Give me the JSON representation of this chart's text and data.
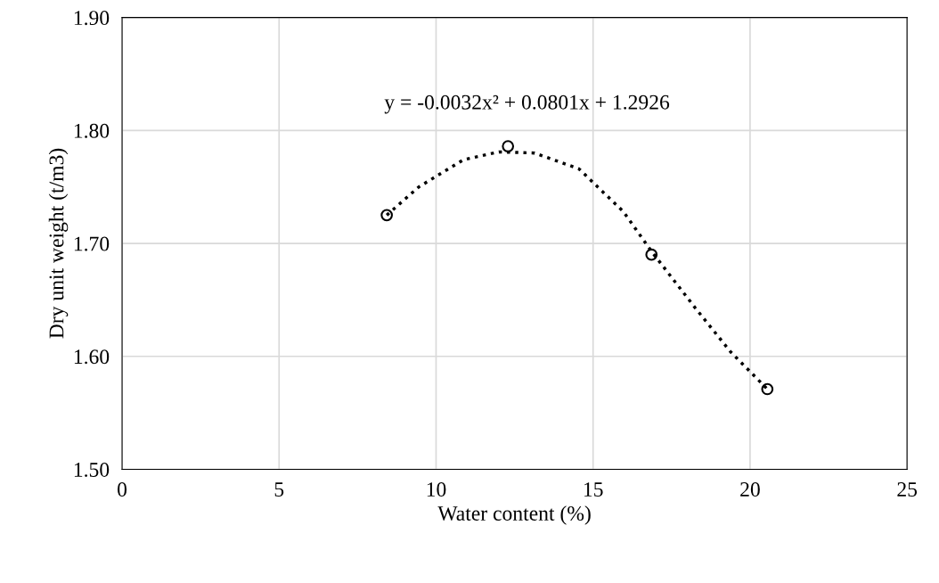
{
  "chart_data": {
    "type": "scatter",
    "xlabel": "Water content (%)",
    "ylabel": "Dry unit weight (t/m3)",
    "xlim": [
      0,
      25
    ],
    "xticks": [
      0,
      5,
      10,
      15,
      20,
      25
    ],
    "ylim": [
      1.5,
      1.9
    ],
    "yticks": [
      {
        "value": 1.5,
        "label": "1.50"
      },
      {
        "value": 1.6,
        "label": "1.60"
      },
      {
        "value": 1.7,
        "label": "1.70"
      },
      {
        "value": 1.8,
        "label": "1.80"
      },
      {
        "value": 1.9,
        "label": "1.90"
      }
    ],
    "grid": true,
    "legend": false,
    "series": [
      {
        "color": "#000000",
        "marker": "circle",
        "x": [
          8.43,
          12.29,
          16.86,
          20.55
        ],
        "values": [
          1.725,
          1.786,
          1.69,
          1.571
        ]
      },
      {
        "type": "line",
        "color": "#000000",
        "marker": "none",
        "line_style": "dotted",
        "x": [
          8.43,
          9.45,
          10.87,
          12.0,
          13.14,
          14.55,
          15.97,
          16.86,
          18.25,
          19.38,
          20.55
        ],
        "values": [
          1.725,
          1.75,
          1.774,
          1.781,
          1.78,
          1.766,
          1.728,
          1.693,
          1.643,
          1.604,
          1.571
        ]
      }
    ],
    "annotations": [
      {
        "text": "y = -0.0032x² + 0.0801x + 1.2926",
        "x": 12.29,
        "y": 1.786
      }
    ]
  }
}
